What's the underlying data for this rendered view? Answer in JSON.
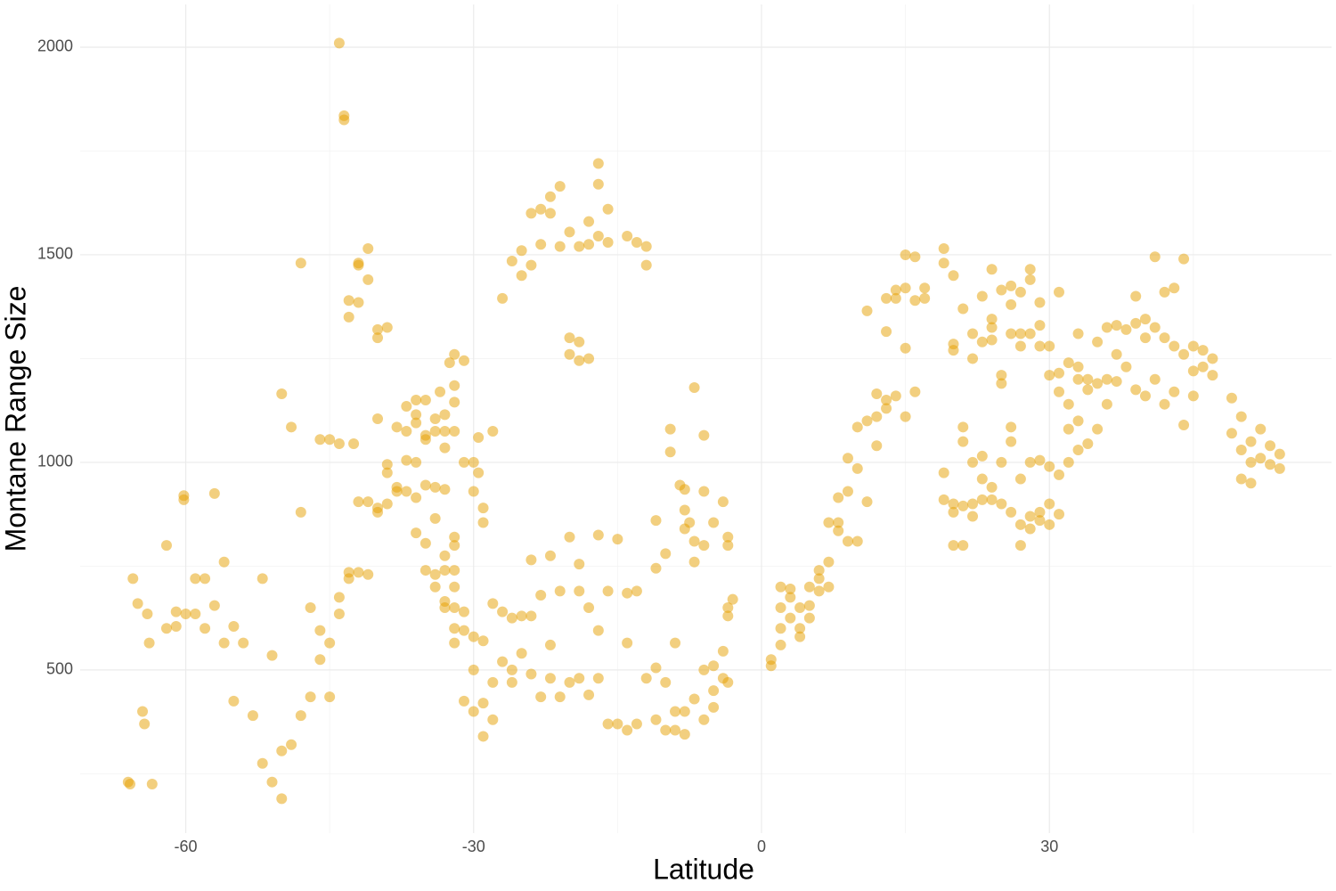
{
  "chart_data": {
    "type": "scatter",
    "x_label": "Latitude",
    "y_label": "Montane Range Size",
    "color": "#E69F00",
    "opacity": 0.5,
    "grid": true,
    "xlim": [
      -71,
      59.4
    ],
    "ylim": [
      107,
      2103
    ],
    "xticks": [
      -60,
      -30,
      0,
      30
    ],
    "yticks": [
      500,
      1000,
      1500,
      2000
    ],
    "x_minor_grid": [
      -45,
      -15,
      15,
      45
    ],
    "y_minor_grid": [
      250,
      750,
      1250,
      1750
    ],
    "x": [
      -65.5,
      -65,
      -64,
      -64.5,
      -64.3,
      -66,
      -65.8,
      -63.5,
      -63.8,
      -62,
      -62,
      -61,
      -61,
      -60.2,
      -60.2,
      -60,
      -59,
      -59,
      -58,
      -58,
      -57,
      -57,
      -56,
      -56,
      -55,
      -55,
      -54,
      -53,
      -52,
      -52,
      -51,
      -51,
      -50,
      -50,
      -50,
      -49,
      -49,
      -48,
      -48,
      -48,
      -47,
      -47,
      -46,
      -46,
      -46,
      -45,
      -45,
      -45,
      -44,
      -44,
      -44,
      -44,
      -43.5,
      -43.5,
      -43,
      -43,
      -43,
      -43,
      -42.5,
      -42,
      -42,
      -42,
      -42,
      -42,
      -41,
      -41,
      -41,
      -41,
      -40,
      -40,
      -40,
      -40,
      -40,
      -39,
      -39,
      -39,
      -39,
      -38,
      -38,
      -38,
      -37,
      -37,
      -37,
      -37,
      -36,
      -36,
      -36,
      -36,
      -36,
      -36,
      -35,
      -35,
      -35,
      -35,
      -35,
      -35,
      -34,
      -34,
      -34,
      -34,
      -34,
      -34,
      -33.5,
      -33,
      -33,
      -33,
      -33,
      -33,
      -33,
      -33,
      -33,
      -32.5,
      -32,
      -32,
      -32,
      -32,
      -32,
      -32,
      -32,
      -32,
      -32,
      -32,
      -32,
      -31,
      -31,
      -31,
      -31,
      -31,
      -30,
      -30,
      -30,
      -30,
      -30,
      -29.5,
      -29.5,
      -29,
      -29,
      -29,
      -29,
      -29,
      -28,
      -28,
      -28,
      -28,
      -27,
      -27,
      -27,
      -26,
      -26,
      -26,
      -26,
      -25,
      -25,
      -25,
      -25,
      -24,
      -24,
      -24,
      -24,
      -24,
      -23,
      -23,
      -23,
      -23,
      -22,
      -22,
      -22,
      -22,
      -22,
      -21,
      -21,
      -21,
      -21,
      -20,
      -20,
      -20,
      -20,
      -20,
      -19,
      -19,
      -19,
      -19,
      -19,
      -19,
      -18,
      -18,
      -18,
      -18,
      -18,
      -17,
      -17,
      -17,
      -17,
      -17,
      -17,
      -16,
      -16,
      -16,
      -16,
      -15,
      -15,
      -14,
      -14,
      -14,
      -14,
      -13,
      -13,
      -13,
      -12,
      -12,
      -12,
      -11,
      -11,
      -11,
      -11,
      -10,
      -10,
      -10,
      -9.5,
      -9.5,
      -9,
      -9,
      -9,
      -8.5,
      -8,
      -8,
      -8,
      -8,
      -8,
      -7.5,
      -7,
      -7,
      -7,
      -7,
      -6,
      -6,
      -6,
      -6,
      -6,
      -5,
      -5,
      -5,
      -5,
      -4,
      -4,
      -4,
      -3.5,
      -3.5,
      -3.5,
      -3.5,
      -3.5,
      -3,
      1,
      1,
      2,
      2,
      2,
      2,
      3,
      3,
      3,
      4,
      4,
      4,
      5,
      5,
      5,
      6,
      6,
      6,
      7,
      7,
      7,
      8,
      8,
      8,
      9,
      9,
      9,
      10,
      10,
      10,
      11,
      11,
      11,
      12,
      12,
      12,
      13,
      13,
      13,
      13,
      14,
      14,
      14,
      15,
      15,
      15,
      15,
      16,
      16,
      16,
      17,
      17,
      19,
      19,
      19,
      19,
      20,
      20,
      20,
      20,
      20,
      20,
      21,
      21,
      21,
      21,
      21,
      22,
      22,
      22,
      22,
      22,
      23,
      23,
      23,
      23,
      23,
      24,
      24,
      24,
      24,
      24,
      24,
      25,
      25,
      25,
      25,
      25,
      26,
      26,
      26,
      26,
      26,
      26,
      27,
      27,
      27,
      27,
      27,
      27,
      28,
      28,
      28,
      28,
      28,
      28,
      29,
      29,
      29,
      29,
      29,
      29,
      30,
      30,
      30,
      30,
      30,
      31,
      31,
      31,
      31,
      31,
      32,
      32,
      32,
      32,
      33,
      33,
      33,
      33,
      33,
      34,
      34,
      34,
      35,
      35,
      35,
      36,
      36,
      36,
      37,
      37,
      37,
      38,
      38,
      39,
      39,
      39,
      40,
      40,
      40,
      41,
      41,
      41,
      42,
      42,
      42,
      43,
      43,
      43,
      44,
      44,
      44,
      45,
      45,
      45,
      46,
      46,
      47,
      47,
      49,
      49,
      50,
      50,
      50,
      51,
      51,
      51,
      52,
      52,
      53,
      53,
      54,
      54
    ],
    "values": [
      720,
      660,
      635,
      400,
      370,
      230,
      225,
      225,
      565,
      800,
      600,
      640,
      605,
      920,
      910,
      635,
      720,
      635,
      720,
      600,
      925,
      655,
      565,
      760,
      605,
      425,
      565,
      390,
      720,
      275,
      230,
      535,
      190,
      305,
      1165,
      320,
      1085,
      390,
      880,
      1480,
      435,
      650,
      1055,
      595,
      525,
      565,
      435,
      1055,
      2010,
      1045,
      675,
      635,
      1825,
      1835,
      1390,
      1350,
      735,
      720,
      1045,
      1480,
      1475,
      1385,
      905,
      735,
      1515,
      1440,
      905,
      730,
      1320,
      1300,
      1105,
      890,
      880,
      1325,
      995,
      975,
      900,
      1085,
      940,
      930,
      1135,
      1075,
      930,
      1005,
      1150,
      1115,
      1095,
      1000,
      915,
      830,
      1055,
      1065,
      1150,
      945,
      740,
      805,
      1105,
      1075,
      940,
      865,
      730,
      700,
      1170,
      1115,
      1075,
      1035,
      935,
      775,
      740,
      665,
      650,
      1240,
      1185,
      1260,
      1145,
      1075,
      820,
      800,
      740,
      700,
      650,
      600,
      565,
      1245,
      1000,
      640,
      595,
      425,
      1000,
      930,
      580,
      500,
      400,
      1060,
      975,
      890,
      855,
      570,
      420,
      340,
      1075,
      660,
      470,
      380,
      1395,
      640,
      520,
      1485,
      625,
      500,
      470,
      1510,
      1450,
      630,
      540,
      1475,
      1600,
      765,
      630,
      490,
      1525,
      1610,
      680,
      435,
      1640,
      1600,
      775,
      560,
      480,
      1665,
      1520,
      690,
      435,
      1555,
      1300,
      1260,
      820,
      470,
      1520,
      1290,
      1245,
      755,
      690,
      480,
      1525,
      1580,
      1250,
      650,
      440,
      1720,
      1670,
      1545,
      825,
      595,
      480,
      1610,
      1530,
      690,
      370,
      815,
      370,
      1545,
      685,
      565,
      355,
      1530,
      690,
      370,
      1475,
      1520,
      480,
      745,
      860,
      380,
      505,
      780,
      470,
      355,
      1080,
      1025,
      565,
      400,
      355,
      945,
      935,
      885,
      840,
      400,
      345,
      855,
      760,
      1180,
      810,
      430,
      1065,
      930,
      800,
      500,
      380,
      855,
      510,
      450,
      410,
      905,
      545,
      480,
      820,
      800,
      650,
      630,
      470,
      670,
      525,
      510,
      700,
      650,
      600,
      560,
      695,
      625,
      675,
      650,
      600,
      580,
      700,
      655,
      625,
      720,
      740,
      690,
      700,
      760,
      855,
      855,
      915,
      835,
      1010,
      810,
      930,
      985,
      1085,
      810,
      1365,
      1100,
      905,
      1165,
      1110,
      1040,
      1395,
      1315,
      1150,
      1130,
      1415,
      1395,
      1160,
      1500,
      1420,
      1275,
      1110,
      1495,
      1390,
      1170,
      1420,
      1395,
      1515,
      1480,
      910,
      975,
      1450,
      1285,
      1270,
      900,
      880,
      800,
      1370,
      1085,
      1050,
      800,
      895,
      1310,
      1250,
      1000,
      870,
      900,
      1400,
      1290,
      1015,
      960,
      910,
      1465,
      1345,
      1325,
      1295,
      910,
      940,
      1415,
      1190,
      1210,
      1000,
      900,
      1425,
      1380,
      1310,
      1085,
      1050,
      880,
      1410,
      1310,
      1280,
      960,
      850,
      800,
      1465,
      1440,
      1310,
      1000,
      870,
      840,
      1385,
      1330,
      1280,
      1005,
      880,
      860,
      1280,
      1210,
      990,
      900,
      850,
      1410,
      1215,
      1170,
      970,
      875,
      1240,
      1140,
      1080,
      1000,
      1310,
      1230,
      1200,
      1100,
      1030,
      1200,
      1175,
      1045,
      1290,
      1190,
      1080,
      1325,
      1200,
      1140,
      1330,
      1260,
      1195,
      1320,
      1230,
      1400,
      1335,
      1175,
      1345,
      1300,
      1160,
      1495,
      1325,
      1200,
      1410,
      1300,
      1140,
      1420,
      1280,
      1170,
      1490,
      1260,
      1090,
      1280,
      1220,
      1160,
      1270,
      1230,
      1250,
      1210,
      1155,
      1070,
      1110,
      1030,
      960,
      1050,
      1000,
      950,
      1080,
      1010,
      1040,
      995,
      1020,
      985
    ]
  }
}
